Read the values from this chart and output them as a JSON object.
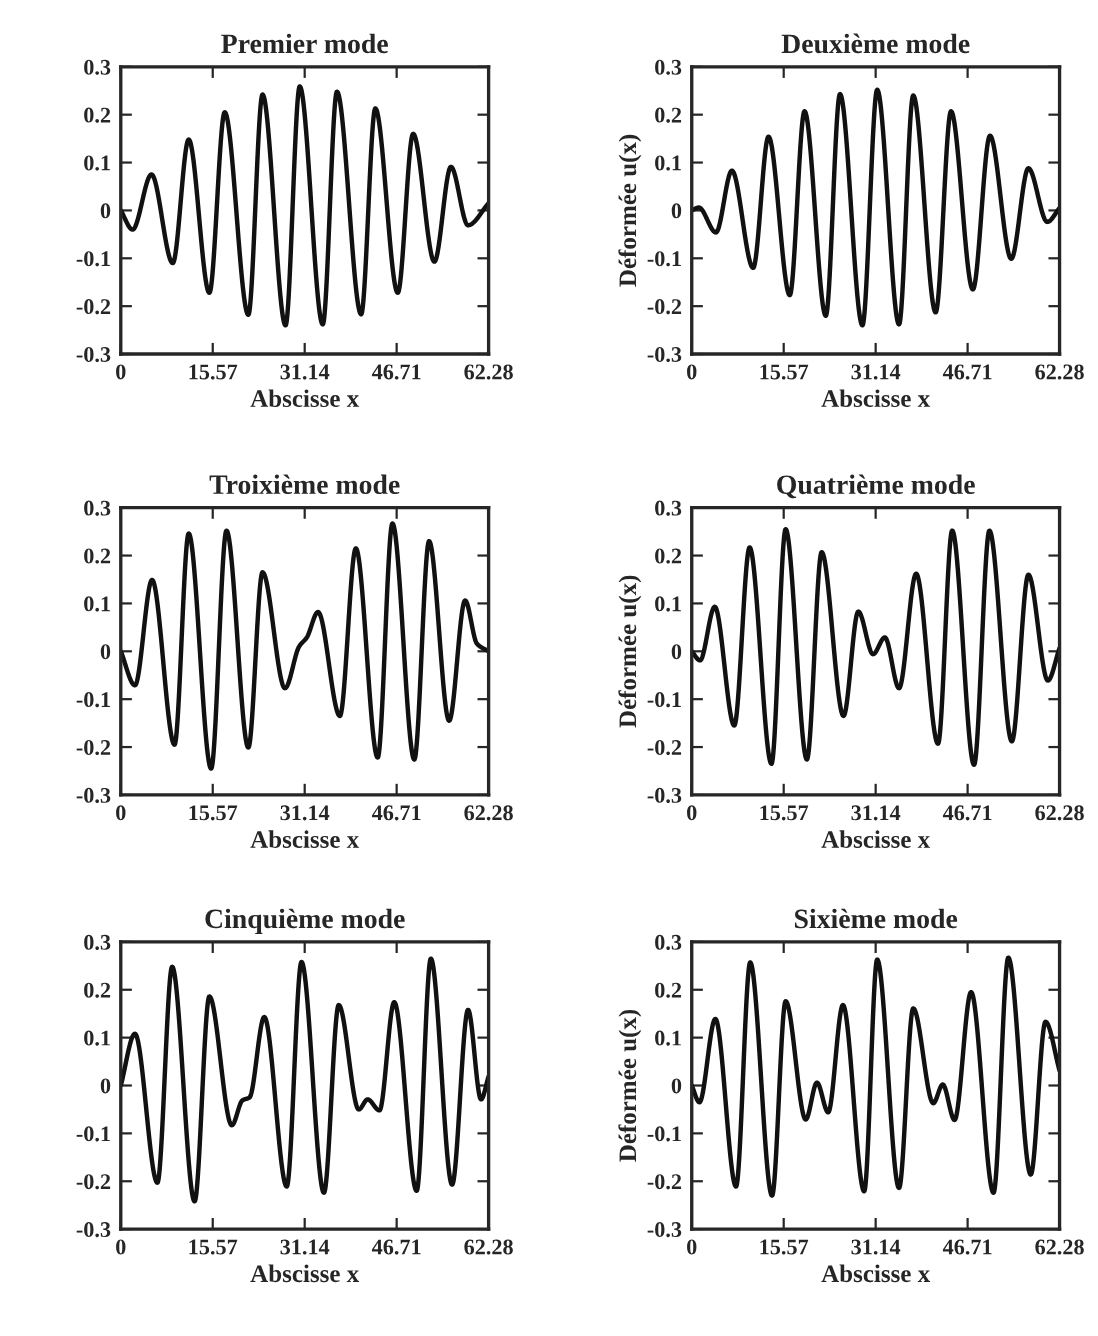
{
  "chart_data": [
    {
      "type": "line",
      "title": "Premier mode",
      "xlabel": "Abscisse x",
      "x": [
        0,
        2.0,
        5.2,
        8.8,
        11.5,
        15.0,
        17.6,
        21.6,
        24.0,
        27.9,
        30.3,
        34.2,
        36.6,
        40.7,
        43.1,
        46.9,
        49.5,
        53.1,
        55.9,
        58.8,
        62.28
      ],
      "series": [
        {
          "color": "#111111",
          "values": [
            0,
            -0.04,
            0.075,
            -0.11,
            0.148,
            -0.172,
            0.205,
            -0.218,
            0.242,
            -0.24,
            0.259,
            -0.238,
            0.248,
            -0.217,
            0.213,
            -0.172,
            0.16,
            -0.107,
            0.091,
            -0.031,
            0.015
          ]
        }
      ],
      "xlim": [
        0,
        62.28
      ],
      "ylim": [
        -0.3,
        0.3
      ],
      "xticks": [
        0,
        15.57,
        31.14,
        46.71,
        62.28
      ],
      "yticks": [
        -0.3,
        -0.2,
        -0.1,
        0,
        0.1,
        0.2,
        0.3
      ]
    },
    {
      "type": "line",
      "title": "Deuxième mode",
      "xlabel": "Abscisse x",
      "ylabel": "Déformée u(x)",
      "x": [
        0,
        1.2,
        4.1,
        6.8,
        10.4,
        13.0,
        16.6,
        19.1,
        22.7,
        25.1,
        28.9,
        31.4,
        35.1,
        37.5,
        41.3,
        43.9,
        47.6,
        50.5,
        54.1,
        57.0,
        60.2,
        62.28
      ],
      "series": [
        {
          "color": "#111111",
          "values": [
            0,
            0.006,
            -0.046,
            0.083,
            -0.12,
            0.154,
            -0.177,
            0.207,
            -0.22,
            0.243,
            -0.24,
            0.252,
            -0.238,
            0.24,
            -0.213,
            0.207,
            -0.165,
            0.156,
            -0.101,
            0.088,
            -0.024,
            0.005
          ]
        }
      ],
      "xlim": [
        0,
        62.28
      ],
      "ylim": [
        -0.3,
        0.3
      ],
      "xticks": [
        0,
        15.57,
        31.14,
        46.71,
        62.28
      ],
      "yticks": [
        -0.3,
        -0.2,
        -0.1,
        0,
        0.1,
        0.2,
        0.3
      ]
    },
    {
      "type": "line",
      "title": "Troixième mode",
      "xlabel": "Abscisse x",
      "x": [
        0,
        2.4,
        5.3,
        9.1,
        11.5,
        15.3,
        17.9,
        21.6,
        24.0,
        27.8,
        30.2,
        31.5,
        33.4,
        37.1,
        39.8,
        43.5,
        46.0,
        49.7,
        52.2,
        55.6,
        58.3,
        60.3,
        62.28
      ],
      "series": [
        {
          "color": "#111111",
          "values": [
            0,
            -0.071,
            0.149,
            -0.195,
            0.246,
            -0.245,
            0.252,
            -0.201,
            0.165,
            -0.077,
            0.01,
            0.029,
            0.082,
            -0.135,
            0.215,
            -0.222,
            0.267,
            -0.226,
            0.23,
            -0.145,
            0.106,
            0.016,
            0.0
          ]
        }
      ],
      "xlim": [
        0,
        62.28
      ],
      "ylim": [
        -0.3,
        0.3
      ],
      "xticks": [
        0,
        15.57,
        31.14,
        46.71,
        62.28
      ],
      "yticks": [
        -0.3,
        -0.2,
        -0.1,
        0,
        0.1,
        0.2,
        0.3
      ]
    },
    {
      "type": "line",
      "title": "Quatrième mode",
      "xlabel": "Abscisse x",
      "ylabel": "Déformée u(x)",
      "x": [
        0,
        1.4,
        3.9,
        7.2,
        9.8,
        13.5,
        15.9,
        19.5,
        22.0,
        25.7,
        28.2,
        30.7,
        32.7,
        35.1,
        38.0,
        41.7,
        44.1,
        47.8,
        50.4,
        54.2,
        57.0,
        60.3,
        62.28
      ],
      "series": [
        {
          "color": "#111111",
          "values": [
            0,
            -0.019,
            0.093,
            -0.155,
            0.217,
            -0.235,
            0.255,
            -0.226,
            0.207,
            -0.135,
            0.083,
            -0.006,
            0.029,
            -0.077,
            0.162,
            -0.193,
            0.252,
            -0.237,
            0.252,
            -0.188,
            0.16,
            -0.061,
            0.007
          ]
        }
      ],
      "xlim": [
        0,
        62.28
      ],
      "ylim": [
        -0.3,
        0.3
      ],
      "xticks": [
        0,
        15.57,
        31.14,
        46.71,
        62.28
      ],
      "yticks": [
        -0.3,
        -0.2,
        -0.1,
        0,
        0.1,
        0.2,
        0.3
      ]
    },
    {
      "type": "line",
      "title": "Cinquième mode",
      "xlabel": "Abscisse x",
      "x": [
        0,
        2.4,
        6.2,
        8.7,
        12.5,
        15.0,
        18.8,
        20.6,
        21.8,
        24.3,
        28.1,
        30.6,
        34.4,
        36.9,
        40.3,
        41.8,
        43.8,
        46.3,
        50.1,
        52.5,
        56.1,
        58.8,
        61.0,
        62.28
      ],
      "series": [
        {
          "color": "#111111",
          "values": [
            0,
            0.108,
            -0.203,
            0.248,
            -0.242,
            0.186,
            -0.083,
            -0.031,
            -0.025,
            0.143,
            -0.211,
            0.258,
            -0.224,
            0.168,
            -0.05,
            -0.029,
            -0.052,
            0.174,
            -0.22,
            0.265,
            -0.207,
            0.158,
            -0.029,
            0.019
          ]
        }
      ],
      "xlim": [
        0,
        62.28
      ],
      "ylim": [
        -0.3,
        0.3
      ],
      "xticks": [
        0,
        15.57,
        31.14,
        46.71,
        62.28
      ],
      "yticks": [
        -0.3,
        -0.2,
        -0.1,
        0,
        0.1,
        0.2,
        0.3
      ]
    },
    {
      "type": "line",
      "title": "Sixième mode",
      "xlabel": "Abscisse x",
      "ylabel": "Déformée u(x)",
      "x": [
        0,
        1.3,
        4.0,
        7.5,
        9.9,
        13.6,
        15.9,
        19.3,
        21.2,
        23.1,
        25.6,
        29.2,
        31.4,
        35.1,
        37.5,
        40.9,
        42.5,
        44.5,
        47.3,
        51.1,
        53.6,
        57.4,
        59.9,
        62.28
      ],
      "series": [
        {
          "color": "#111111",
          "values": [
            0,
            -0.035,
            0.139,
            -0.211,
            0.257,
            -0.23,
            0.176,
            -0.071,
            0.006,
            -0.056,
            0.168,
            -0.221,
            0.263,
            -0.214,
            0.161,
            -0.037,
            0.002,
            -0.072,
            0.195,
            -0.224,
            0.267,
            -0.186,
            0.133,
            0.031
          ]
        }
      ],
      "xlim": [
        0,
        62.28
      ],
      "ylim": [
        -0.3,
        0.3
      ],
      "xticks": [
        0,
        15.57,
        31.14,
        46.71,
        62.28
      ],
      "yticks": [
        -0.3,
        -0.2,
        -0.1,
        0,
        0.1,
        0.2,
        0.3
      ]
    }
  ]
}
